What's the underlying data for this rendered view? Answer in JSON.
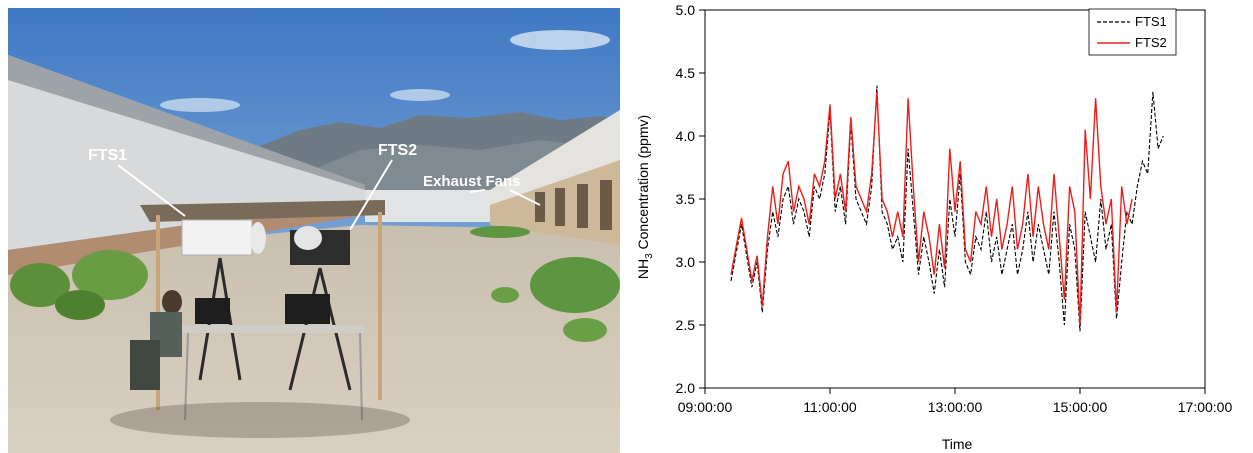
{
  "photo": {
    "labels": {
      "fts1": "FTS1",
      "fts2": "FTS2",
      "exhaust": "Exhaust Fans"
    }
  },
  "chart_data": {
    "type": "line",
    "title": "",
    "xlabel": "Time",
    "ylabel_prefix": "NH",
    "ylabel_sub": "3",
    "ylabel_suffix": " Concentration (ppmv)",
    "xlim": [
      "09:00:00",
      "17:00:00"
    ],
    "ylim": [
      2.0,
      5.0
    ],
    "x_ticks": [
      "09:00:00",
      "11:00:00",
      "13:00:00",
      "15:00:00",
      "17:00:00"
    ],
    "y_ticks": [
      "2.0",
      "2.5",
      "3.0",
      "3.5",
      "4.0",
      "4.5",
      "5.0"
    ],
    "legend_position": "top-right",
    "grid": false,
    "series": [
      {
        "name": "FTS1",
        "color": "#000000",
        "dash": "dashed",
        "x": [
          "09:25",
          "09:35",
          "09:45",
          "09:50",
          "09:55",
          "10:00",
          "10:05",
          "10:10",
          "10:15",
          "10:20",
          "10:25",
          "10:30",
          "10:35",
          "10:40",
          "10:45",
          "10:50",
          "10:55",
          "11:00",
          "11:05",
          "11:10",
          "11:15",
          "11:20",
          "11:25",
          "11:30",
          "11:35",
          "11:40",
          "11:45",
          "11:50",
          "11:55",
          "12:00",
          "12:05",
          "12:10",
          "12:15",
          "12:20",
          "12:25",
          "12:30",
          "12:35",
          "12:40",
          "12:45",
          "12:50",
          "12:55",
          "13:00",
          "13:05",
          "13:10",
          "13:15",
          "13:20",
          "13:25",
          "13:30",
          "13:35",
          "13:40",
          "13:45",
          "13:50",
          "13:55",
          "14:00",
          "14:05",
          "14:10",
          "14:15",
          "14:20",
          "14:25",
          "14:30",
          "14:35",
          "14:40",
          "14:45",
          "14:50",
          "14:55",
          "15:00",
          "15:05",
          "15:10",
          "15:15",
          "15:20",
          "15:25",
          "15:30",
          "15:35",
          "15:40",
          "15:45",
          "15:50",
          "15:55",
          "16:00",
          "16:05",
          "16:10",
          "16:15",
          "16:20"
        ],
        "values": [
          2.85,
          3.3,
          2.8,
          3.0,
          2.6,
          3.1,
          3.4,
          3.2,
          3.5,
          3.6,
          3.3,
          3.5,
          3.4,
          3.2,
          3.6,
          3.5,
          3.7,
          4.2,
          3.4,
          3.6,
          3.3,
          4.1,
          3.5,
          3.4,
          3.3,
          3.6,
          4.4,
          3.4,
          3.3,
          3.1,
          3.2,
          3.0,
          3.9,
          3.4,
          2.9,
          3.2,
          3.0,
          2.75,
          3.1,
          2.8,
          3.5,
          3.2,
          3.7,
          3.0,
          2.9,
          3.2,
          3.1,
          3.4,
          3.0,
          3.2,
          2.9,
          3.1,
          3.3,
          2.9,
          3.1,
          3.4,
          3.0,
          3.3,
          3.1,
          2.9,
          3.4,
          3.0,
          2.5,
          3.3,
          3.1,
          2.45,
          3.4,
          3.2,
          3.0,
          3.5,
          3.1,
          3.3,
          2.55,
          3.0,
          3.4,
          3.3,
          3.6,
          3.8,
          3.7,
          4.35,
          3.9,
          4.0
        ]
      },
      {
        "name": "FTS2",
        "color": "#e8201c",
        "dash": "solid",
        "x": [
          "09:25",
          "09:35",
          "09:45",
          "09:50",
          "09:55",
          "10:00",
          "10:05",
          "10:10",
          "10:15",
          "10:20",
          "10:25",
          "10:30",
          "10:35",
          "10:40",
          "10:45",
          "10:50",
          "10:55",
          "11:00",
          "11:05",
          "11:10",
          "11:15",
          "11:20",
          "11:25",
          "11:30",
          "11:35",
          "11:40",
          "11:45",
          "11:50",
          "11:55",
          "12:00",
          "12:05",
          "12:10",
          "12:15",
          "12:20",
          "12:25",
          "12:30",
          "12:35",
          "12:40",
          "12:45",
          "12:50",
          "12:55",
          "13:00",
          "13:05",
          "13:10",
          "13:15",
          "13:20",
          "13:25",
          "13:30",
          "13:35",
          "13:40",
          "13:45",
          "13:50",
          "13:55",
          "14:00",
          "14:05",
          "14:10",
          "14:15",
          "14:20",
          "14:25",
          "14:30",
          "14:35",
          "14:40",
          "14:45",
          "14:50",
          "14:55",
          "15:00",
          "15:05",
          "15:10",
          "15:15",
          "15:20",
          "15:25",
          "15:30",
          "15:35",
          "15:40",
          "15:45",
          "15:50"
        ],
        "values": [
          2.9,
          3.35,
          2.85,
          3.05,
          2.65,
          3.2,
          3.6,
          3.3,
          3.7,
          3.8,
          3.4,
          3.6,
          3.5,
          3.3,
          3.7,
          3.6,
          3.8,
          4.25,
          3.5,
          3.7,
          3.4,
          4.15,
          3.6,
          3.5,
          3.4,
          3.7,
          4.35,
          3.5,
          3.4,
          3.2,
          3.4,
          3.2,
          4.3,
          3.6,
          3.0,
          3.4,
          3.2,
          2.9,
          3.3,
          2.95,
          3.9,
          3.4,
          3.8,
          3.1,
          3.0,
          3.4,
          3.3,
          3.6,
          3.2,
          3.5,
          3.1,
          3.3,
          3.6,
          3.1,
          3.3,
          3.7,
          3.2,
          3.6,
          3.3,
          3.1,
          3.7,
          3.2,
          2.7,
          3.6,
          3.4,
          2.5,
          4.05,
          3.5,
          4.3,
          3.6,
          3.3,
          3.5,
          2.6,
          3.6,
          3.3,
          3.5
        ]
      }
    ]
  }
}
